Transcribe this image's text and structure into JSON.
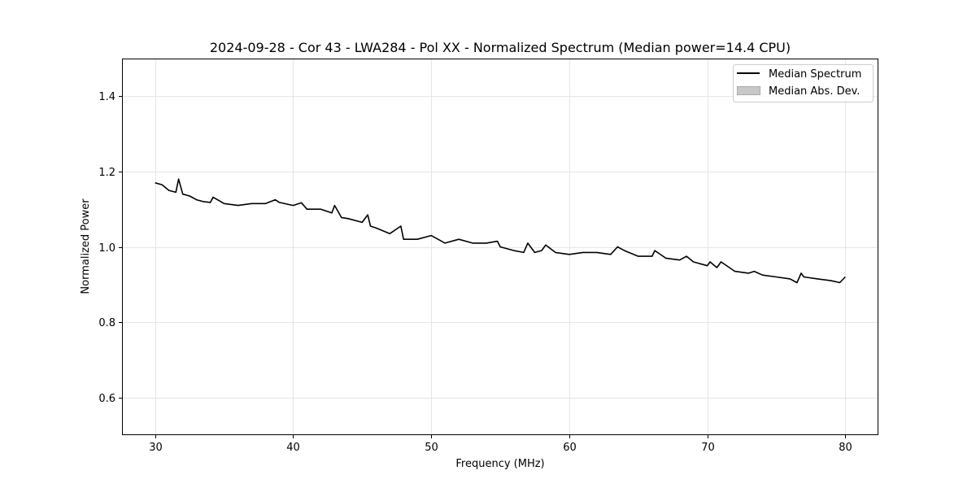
{
  "chart_data": {
    "type": "line",
    "title": "2024-09-28 - Cor 43 - LWA284 - Pol XX - Normalized Spectrum (Median power=14.4 CPU)",
    "xlabel": "Frequency (MHz)",
    "ylabel": "Normalized Power",
    "xlim": [
      27.6,
      82.4
    ],
    "ylim": [
      0.5,
      1.5
    ],
    "xticks": [
      30,
      40,
      50,
      60,
      70,
      80
    ],
    "yticks": [
      0.6,
      0.8,
      1.0,
      1.2,
      1.4
    ],
    "xtick_labels": [
      "30",
      "40",
      "50",
      "60",
      "70",
      "80"
    ],
    "ytick_labels": [
      "0.6",
      "0.8",
      "1.0",
      "1.2",
      "1.4"
    ],
    "grid": true,
    "legend_position": "top-right",
    "series": [
      {
        "name": "Median Spectrum",
        "color": "#000000",
        "x": [
          30.0,
          30.5,
          31.0,
          31.5,
          31.7,
          32.0,
          32.5,
          33.0,
          33.5,
          34.0,
          34.2,
          35.0,
          36.0,
          37.0,
          38.0,
          38.7,
          39.0,
          40.0,
          40.6,
          41.0,
          42.0,
          42.8,
          43.0,
          43.5,
          44.0,
          45.0,
          45.4,
          45.6,
          46.0,
          47.0,
          47.8,
          48.0,
          48.5,
          49.0,
          50.0,
          50.5,
          51.0,
          52.0,
          53.0,
          54.0,
          54.8,
          55.0,
          56.0,
          56.7,
          57.0,
          57.5,
          58.0,
          58.3,
          59.0,
          60.0,
          61.0,
          62.0,
          63.0,
          63.5,
          64.0,
          65.0,
          66.0,
          66.2,
          67.0,
          68.0,
          68.5,
          69.0,
          70.0,
          70.2,
          70.7,
          71.0,
          72.0,
          73.0,
          73.4,
          74.0,
          75.0,
          76.0,
          76.5,
          76.8,
          77.0,
          78.0,
          79.0,
          79.6,
          80.0
        ],
        "values": [
          1.17,
          1.165,
          1.15,
          1.145,
          1.18,
          1.14,
          1.135,
          1.125,
          1.12,
          1.118,
          1.132,
          1.115,
          1.11,
          1.115,
          1.115,
          1.125,
          1.118,
          1.11,
          1.117,
          1.1,
          1.1,
          1.09,
          1.11,
          1.078,
          1.075,
          1.065,
          1.085,
          1.055,
          1.05,
          1.035,
          1.055,
          1.02,
          1.02,
          1.02,
          1.03,
          1.02,
          1.01,
          1.02,
          1.01,
          1.01,
          1.015,
          1.0,
          0.99,
          0.985,
          1.01,
          0.985,
          0.99,
          1.005,
          0.985,
          0.98,
          0.985,
          0.985,
          0.98,
          1.0,
          0.99,
          0.975,
          0.975,
          0.99,
          0.97,
          0.965,
          0.975,
          0.96,
          0.95,
          0.96,
          0.945,
          0.96,
          0.935,
          0.93,
          0.935,
          0.925,
          0.92,
          0.915,
          0.905,
          0.93,
          0.92,
          0.915,
          0.91,
          0.905,
          0.92
        ]
      },
      {
        "name": "Median Abs. Dev.",
        "color": "#c8c8c8",
        "values": []
      }
    ]
  }
}
